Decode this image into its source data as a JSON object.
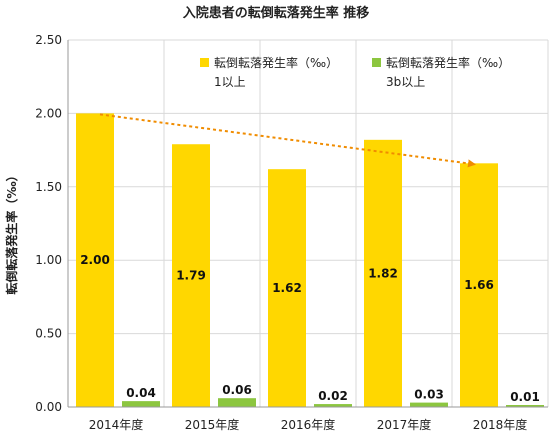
{
  "chart_data": {
    "type": "bar",
    "title": "入院患者の転倒転落発生率 推移",
    "xlabel": "",
    "ylabel": "転倒転落発生率（‰）",
    "categories": [
      "2014年度",
      "2015年度",
      "2016年度",
      "2017年度",
      "2018年度"
    ],
    "series": [
      {
        "name": "転倒転落発生率（‰） 1以上",
        "values": [
          2.0,
          1.79,
          1.62,
          1.82,
          1.66
        ],
        "color": "#FFD700"
      },
      {
        "name": "転倒転落発生率（‰） 3b以上",
        "values": [
          0.04,
          0.06,
          0.02,
          0.03,
          0.01
        ],
        "color": "#8CC63F"
      }
    ],
    "data_labels": [
      [
        "2.00",
        "1.79",
        "1.62",
        "1.82",
        "1.66"
      ],
      [
        "0.04",
        "0.06",
        "0.02",
        "0.03",
        "0.01"
      ]
    ],
    "legend": [
      {
        "line1": "転倒転落発生率（‰）",
        "line2": "1以上"
      },
      {
        "line1": "転倒転落発生率（‰）",
        "line2": "3b以上"
      }
    ],
    "ylim": [
      0,
      2.5
    ],
    "yticks": [
      "0.00",
      "0.50",
      "1.00",
      "1.50",
      "2.00",
      "2.50"
    ],
    "grid": true,
    "legend_position": "top-right",
    "trend_arrow": {
      "from_category": "2014年度",
      "to_category": "2018年度",
      "color": "#F08C00"
    }
  }
}
